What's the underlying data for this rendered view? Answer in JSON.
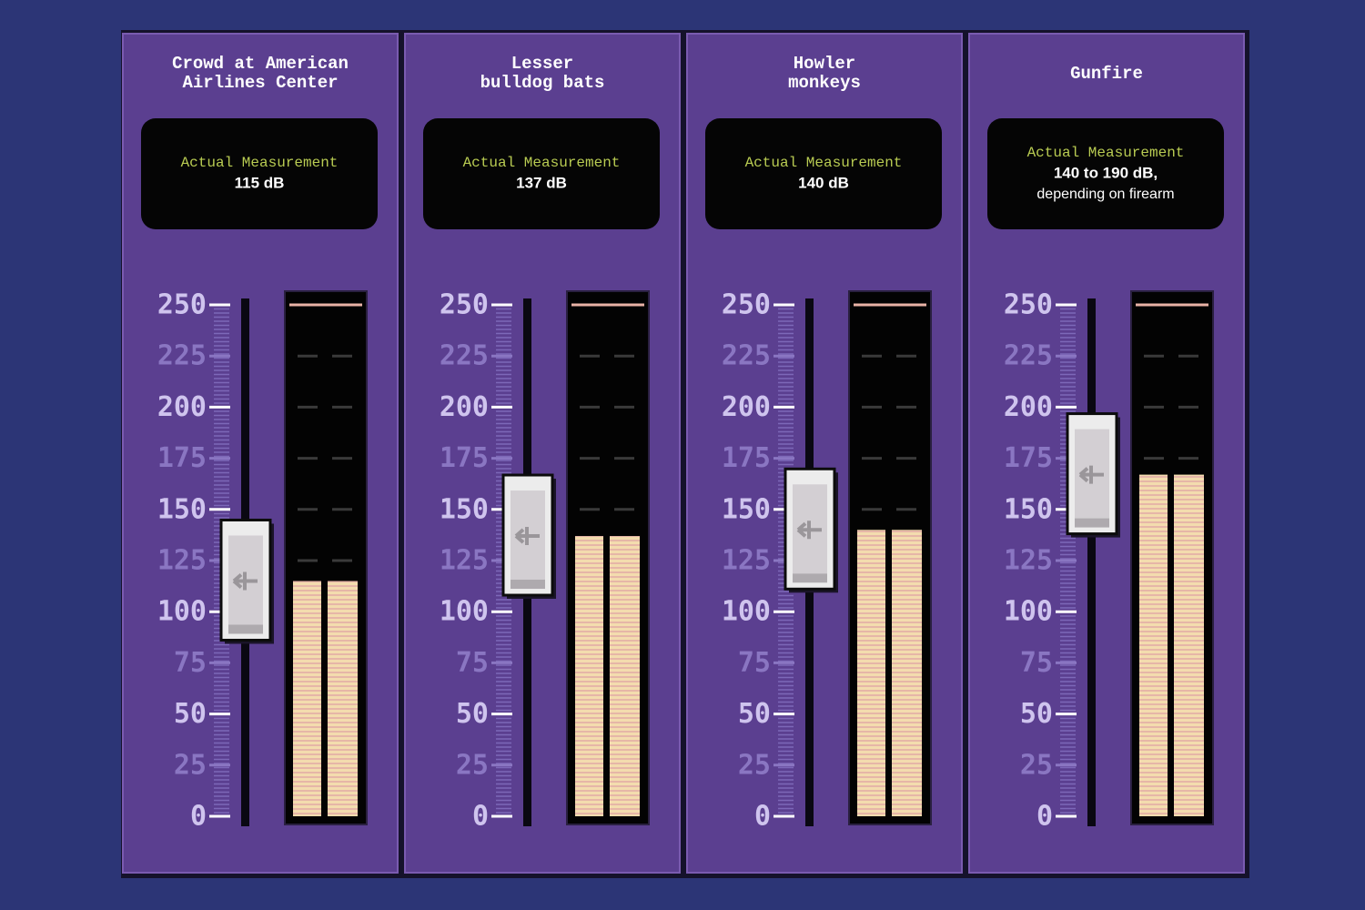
{
  "chart_data": [
    {
      "type": "meter",
      "title": [
        "Crowd at American",
        "Airlines Center"
      ],
      "label": "Actual Measurement",
      "measurement": "115 dB",
      "value": 115,
      "ylim": [
        0,
        250
      ],
      "yticks": [
        0,
        25,
        50,
        75,
        100,
        125,
        150,
        175,
        200,
        225,
        250
      ],
      "color": "#f3dcae"
    },
    {
      "type": "meter",
      "title": [
        "Lesser",
        "bulldog bats"
      ],
      "label": "Actual Measurement",
      "measurement": "137 dB",
      "value": 137,
      "ylim": [
        0,
        250
      ],
      "yticks": [
        0,
        25,
        50,
        75,
        100,
        125,
        150,
        175,
        200,
        225,
        250
      ],
      "color": "#f3dcae"
    },
    {
      "type": "meter",
      "title": [
        "Howler",
        "monkeys"
      ],
      "label": "Actual Measurement",
      "measurement": "140 dB",
      "value": 140,
      "ylim": [
        0,
        250
      ],
      "yticks": [
        0,
        25,
        50,
        75,
        100,
        125,
        150,
        175,
        200,
        225,
        250
      ],
      "color": "#f3dcae"
    },
    {
      "type": "meter",
      "title": [
        "Gunfire"
      ],
      "label": "Actual Measurement",
      "measurement": "140 to 190 dB,",
      "note": "depending on firearm",
      "value": 167,
      "ylim": [
        0,
        250
      ],
      "yticks": [
        0,
        25,
        50,
        75,
        100,
        125,
        150,
        175,
        200,
        225,
        250
      ],
      "color": "#f3dcae"
    }
  ]
}
